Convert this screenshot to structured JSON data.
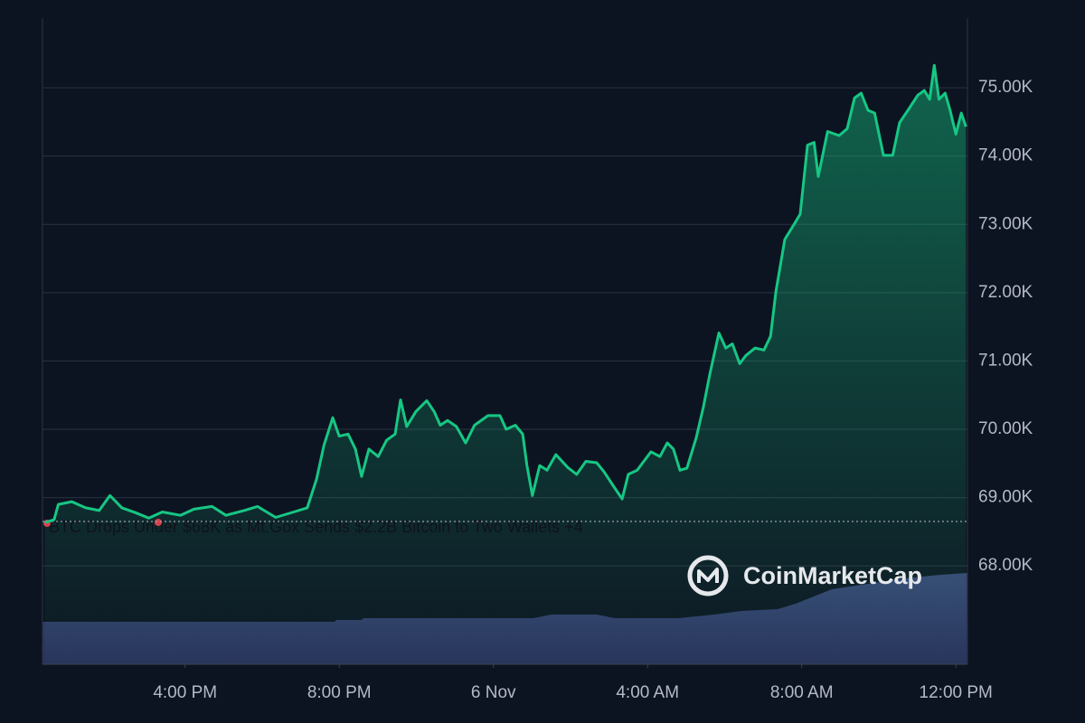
{
  "chart_data": {
    "type": "line",
    "color": "#16c784",
    "x": [
      12.36,
      12.6,
      12.71,
      13.06,
      13.42,
      13.77,
      14.05,
      14.36,
      14.71,
      15.06,
      15.41,
      15.88,
      16.23,
      16.7,
      17.06,
      17.53,
      17.88,
      18.35,
      18.82,
      19.17,
      19.41,
      19.6,
      19.83,
      20.0,
      20.23,
      20.42,
      20.58,
      20.77,
      21.01,
      21.23,
      21.45,
      21.59,
      21.75,
      21.99,
      22.27,
      22.46,
      22.62,
      22.81,
      23.04,
      23.28,
      23.51,
      23.86,
      24.17,
      24.33,
      24.57,
      24.76,
      24.87,
      25.01,
      25.2,
      25.39,
      25.62,
      25.93,
      26.16,
      26.4,
      26.68,
      26.87,
      27.1,
      27.34,
      27.5,
      27.73,
      27.9,
      28.09,
      28.32,
      28.51,
      28.67,
      28.84,
      29.02,
      29.26,
      29.45,
      29.61,
      29.85,
      30.03,
      30.2,
      30.39,
      30.55,
      30.79,
      31.02,
      31.19,
      31.33,
      31.56,
      31.8,
      31.96,
      32.15,
      32.32,
      32.43,
      32.67,
      32.97,
      33.18,
      33.37,
      33.54,
      33.72,
      33.89,
      34.12,
      34.36,
      34.54,
      34.78,
      35.01,
      35.18,
      35.32,
      35.44,
      35.56,
      35.72,
      35.84,
      36.0,
      36.14,
      36.26
    ],
    "values": [
      68635,
      68675,
      68900,
      68940,
      68850,
      68810,
      69030,
      68850,
      68780,
      68700,
      68790,
      68740,
      68830,
      68870,
      68740,
      68810,
      68870,
      68710,
      68790,
      68850,
      69270,
      69760,
      70170,
      69900,
      69930,
      69710,
      69310,
      69710,
      69600,
      69840,
      69930,
      70430,
      70040,
      70260,
      70420,
      70260,
      70060,
      70130,
      70040,
      69800,
      70060,
      70200,
      70200,
      70000,
      70060,
      69930,
      69470,
      69030,
      69470,
      69400,
      69630,
      69440,
      69340,
      69530,
      69510,
      69380,
      69180,
      68980,
      69340,
      69400,
      69530,
      69670,
      69600,
      69800,
      69710,
      69400,
      69430,
      69870,
      70330,
      70790,
      71410,
      71190,
      71250,
      70960,
      71080,
      71190,
      71160,
      71360,
      72020,
      72780,
      73000,
      73150,
      74160,
      74200,
      73700,
      74360,
      74300,
      74400,
      74850,
      74920,
      74670,
      74630,
      74010,
      74010,
      74490,
      74690,
      74890,
      74960,
      74830,
      75330,
      74830,
      74920,
      74690,
      74320,
      74630,
      74430
    ],
    "xlim": [
      12.3,
      36.3
    ],
    "xticks": [
      {
        "value": 16,
        "label": "4:00 PM"
      },
      {
        "value": 20,
        "label": "8:00 PM"
      },
      {
        "value": 24,
        "label": "6 Nov"
      },
      {
        "value": 28,
        "label": "4:00 AM"
      },
      {
        "value": 32,
        "label": "8:00 AM"
      },
      {
        "value": 36,
        "label": "12:00 PM"
      }
    ],
    "ylim": [
      66560,
      76020
    ],
    "yticks": [
      {
        "value": 68000,
        "label": "68.00K"
      },
      {
        "value": 69000,
        "label": "69.00K"
      },
      {
        "value": 70000,
        "label": "70.00K"
      },
      {
        "value": 71000,
        "label": "71.00K"
      },
      {
        "value": 72000,
        "label": "72.00K"
      },
      {
        "value": 73000,
        "label": "73.00K"
      },
      {
        "value": 74000,
        "label": "74.00K"
      },
      {
        "value": 75000,
        "label": "75.00K"
      }
    ],
    "grid": true,
    "reference_line": 68650,
    "annotation": "BTC Drops Under $68K as Mt.Gox Sends $2.2B Bitcoin to Two Wallets +4",
    "watermark": "CoinMarketCap"
  }
}
